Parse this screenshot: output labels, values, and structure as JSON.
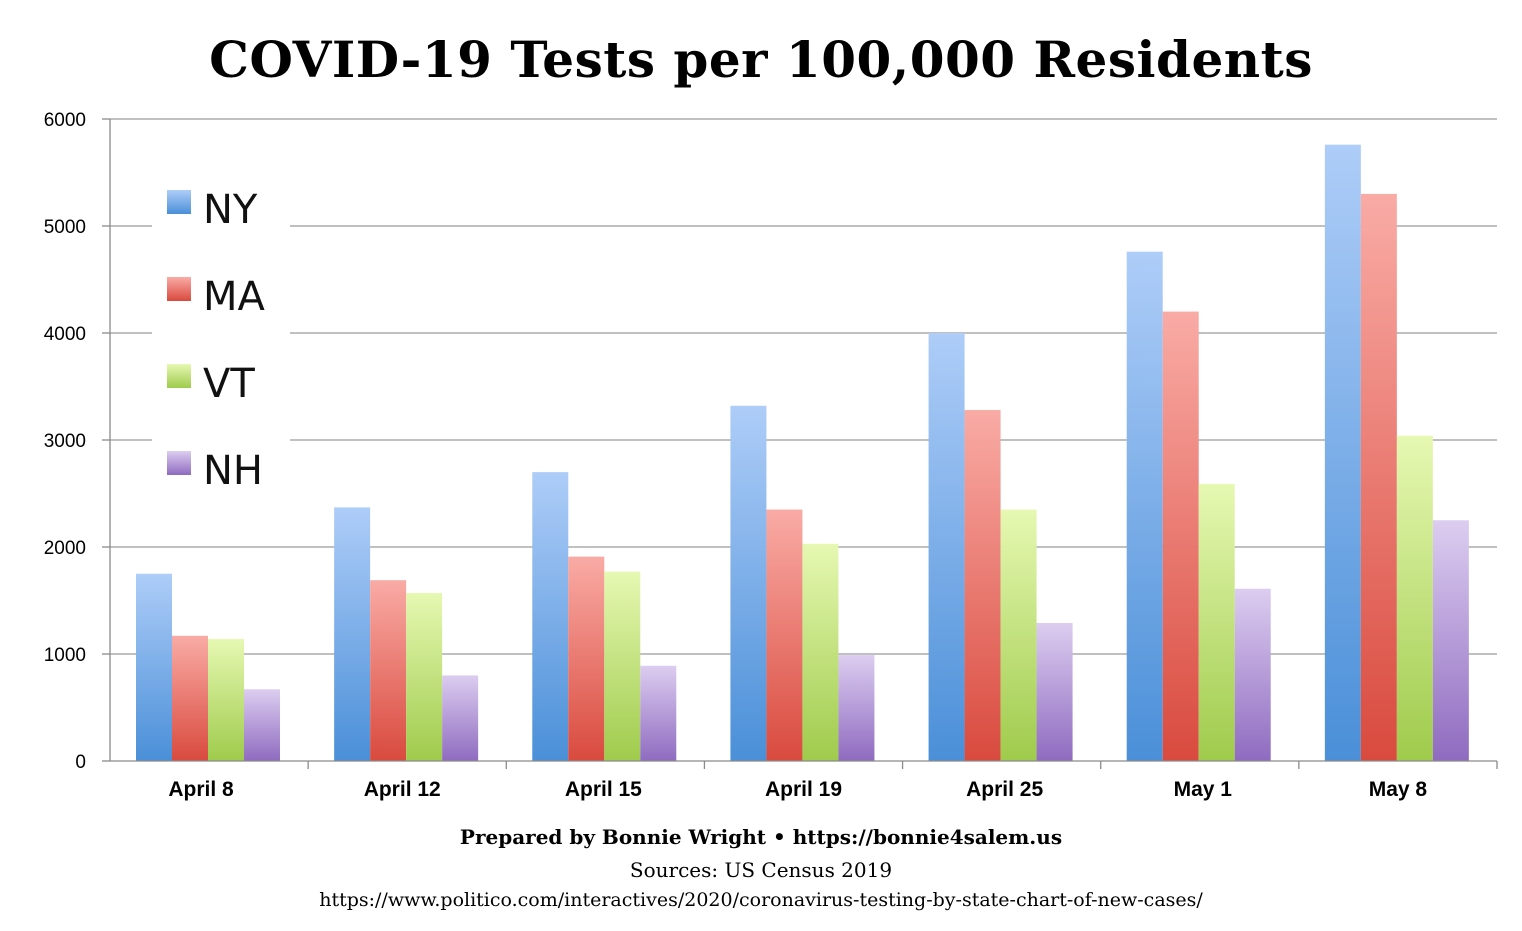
{
  "title": "COVID-19 Tests per 100,000 Residents",
  "footer": {
    "credit": "Prepared by Bonnie Wright • https://bonnie4salem.us",
    "sources": "Sources: US Census 2019",
    "url": "https://www.politico.com/interactives/2020/coronavirus-testing-by-state-chart-of-new-cases/"
  },
  "chart_data": {
    "type": "bar",
    "title": "COVID-19 Tests per 100,000 Residents",
    "xlabel": "",
    "ylabel": "",
    "ylim": [
      0,
      6000
    ],
    "yticks": [
      0,
      1000,
      2000,
      3000,
      4000,
      5000,
      6000
    ],
    "grid": true,
    "legend_position": "top-left",
    "categories": [
      "April 8",
      "April 12",
      "April 15",
      "April 19",
      "April 25",
      "May 1",
      "May 8"
    ],
    "series": [
      {
        "name": "NY",
        "values": [
          1750,
          2370,
          2700,
          3320,
          4000,
          4760,
          5760
        ],
        "color_top": "#aecdf8",
        "color_bottom": "#4a8fd8"
      },
      {
        "name": "MA",
        "values": [
          1170,
          1690,
          1910,
          2350,
          3280,
          4200,
          5300
        ],
        "color_top": "#f9aba5",
        "color_bottom": "#d94a3e"
      },
      {
        "name": "VT",
        "values": [
          1140,
          1570,
          1770,
          2030,
          2350,
          2590,
          3040
        ],
        "color_top": "#e6f8b2",
        "color_bottom": "#9fcb4c"
      },
      {
        "name": "NH",
        "values": [
          670,
          800,
          890,
          990,
          1290,
          1610,
          2250
        ],
        "color_top": "#dccdf0",
        "color_bottom": "#8f6bc0"
      }
    ]
  }
}
